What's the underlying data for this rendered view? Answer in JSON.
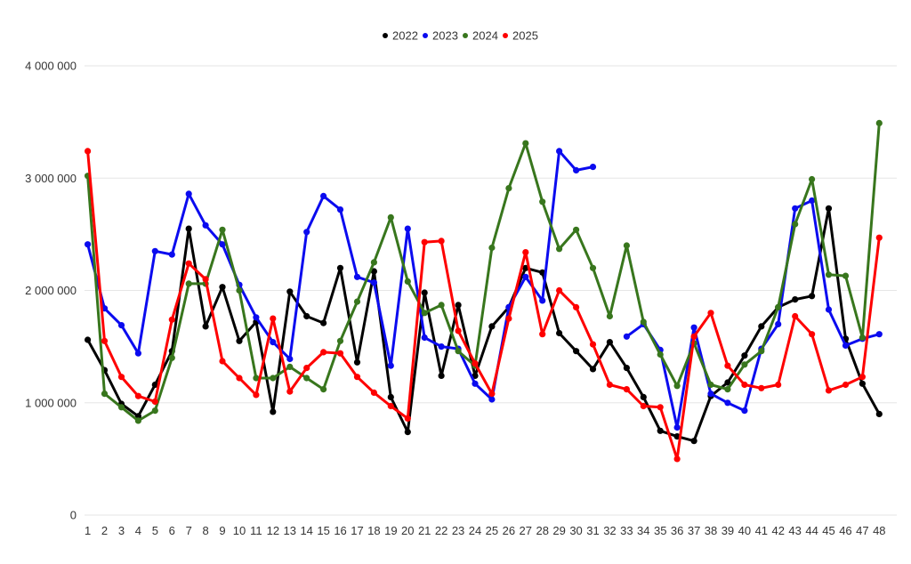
{
  "page": {
    "background": "#ffffff",
    "gridline_color": "#e6e6e6",
    "label_color": "#333333"
  },
  "legend": {
    "position": "top-center",
    "items": [
      {
        "label": "2022",
        "color": "#000000"
      },
      {
        "label": "2023",
        "color": "#0b0bef"
      },
      {
        "label": "2024",
        "color": "#38761d"
      },
      {
        "label": "2025",
        "color": "#fe0000"
      }
    ]
  },
  "y_axis": {
    "ticks": [
      {
        "label": "0",
        "value": 0
      },
      {
        "label": "1 000 000",
        "value": 1000000
      },
      {
        "label": "2 000 000",
        "value": 2000000
      },
      {
        "label": "3 000 000",
        "value": 3000000
      },
      {
        "label": "4 000 000",
        "value": 4000000
      }
    ]
  },
  "x_axis": {
    "labels": [
      "1",
      "2",
      "3",
      "4",
      "5",
      "6",
      "7",
      "8",
      "9",
      "10",
      "11",
      "12",
      "13",
      "14",
      "15",
      "16",
      "17",
      "18",
      "19",
      "20",
      "21",
      "22",
      "23",
      "24",
      "25",
      "26",
      "27",
      "28",
      "29",
      "30",
      "31",
      "32",
      "33",
      "34",
      "35",
      "36",
      "37",
      "38",
      "39",
      "40",
      "41",
      "42",
      "43",
      "44",
      "45",
      "46",
      "47",
      "48"
    ]
  },
  "chart_data": {
    "type": "line",
    "title": "",
    "xlabel": "",
    "ylabel": "",
    "x": [
      1,
      2,
      3,
      4,
      5,
      6,
      7,
      8,
      9,
      10,
      11,
      12,
      13,
      14,
      15,
      16,
      17,
      18,
      19,
      20,
      21,
      22,
      23,
      24,
      25,
      26,
      27,
      28,
      29,
      30,
      31,
      32,
      33,
      34,
      35,
      36,
      37,
      38,
      39,
      40,
      41,
      42,
      43,
      44,
      45,
      46,
      47,
      48
    ],
    "ylim": [
      0,
      4000000
    ],
    "y_tick_interval": 1000000,
    "grid": "horizontal",
    "legend_position": "top-center",
    "marker": "circle",
    "series": [
      {
        "name": "2022",
        "color": "#000000",
        "values": [
          1560000,
          1290000,
          990000,
          880000,
          1160000,
          1460000,
          2550000,
          1680000,
          2030000,
          1550000,
          1720000,
          920000,
          1990000,
          1770000,
          1710000,
          2200000,
          1360000,
          2170000,
          1050000,
          740000,
          1980000,
          1240000,
          1870000,
          1240000,
          1680000,
          1850000,
          2200000,
          2160000,
          1620000,
          1460000,
          1300000,
          1540000,
          1310000,
          1050000,
          750000,
          700000,
          660000,
          1060000,
          1180000,
          1420000,
          1680000,
          1850000,
          1920000,
          1950000,
          2730000,
          1570000,
          1170000,
          900000
        ]
      },
      {
        "name": "2023",
        "color": "#0b0bef",
        "values": [
          2410000,
          1840000,
          1690000,
          1440000,
          2350000,
          2320000,
          2860000,
          2580000,
          2410000,
          2050000,
          1760000,
          1540000,
          1390000,
          2520000,
          2840000,
          2720000,
          2120000,
          2070000,
          1330000,
          2550000,
          1580000,
          1500000,
          1480000,
          1170000,
          1030000,
          1850000,
          2120000,
          1910000,
          3240000,
          3070000,
          3100000,
          null,
          1590000,
          1700000,
          1470000,
          780000,
          1670000,
          1080000,
          1000000,
          930000,
          1480000,
          1700000,
          2730000,
          2800000,
          1830000,
          1510000,
          1570000,
          1610000
        ]
      },
      {
        "name": "2024",
        "color": "#38761d",
        "values": [
          3020000,
          1080000,
          960000,
          840000,
          930000,
          1400000,
          2060000,
          2060000,
          2540000,
          2000000,
          1220000,
          1220000,
          1320000,
          1220000,
          1120000,
          1550000,
          1900000,
          2250000,
          2650000,
          2080000,
          1800000,
          1870000,
          1460000,
          1330000,
          2380000,
          2910000,
          3310000,
          2790000,
          2370000,
          2540000,
          2200000,
          1770000,
          2400000,
          1720000,
          1430000,
          1150000,
          1530000,
          1160000,
          1120000,
          1340000,
          1460000,
          1850000,
          2590000,
          2990000,
          2140000,
          2130000,
          1580000,
          3490000
        ]
      },
      {
        "name": "2025",
        "color": "#fe0000",
        "values": [
          3240000,
          1550000,
          1230000,
          1060000,
          1010000,
          1740000,
          2240000,
          2100000,
          1370000,
          1220000,
          1070000,
          1750000,
          1100000,
          1310000,
          1450000,
          1440000,
          1230000,
          1090000,
          970000,
          860000,
          2430000,
          2440000,
          1640000,
          1350000,
          1080000,
          1750000,
          2340000,
          1610000,
          2000000,
          1850000,
          1520000,
          1160000,
          1120000,
          970000,
          960000,
          500000,
          1590000,
          1800000,
          1330000,
          1160000,
          1130000,
          1160000,
          1770000,
          1610000,
          1110000,
          1160000,
          1230000,
          2470000
        ]
      }
    ]
  }
}
